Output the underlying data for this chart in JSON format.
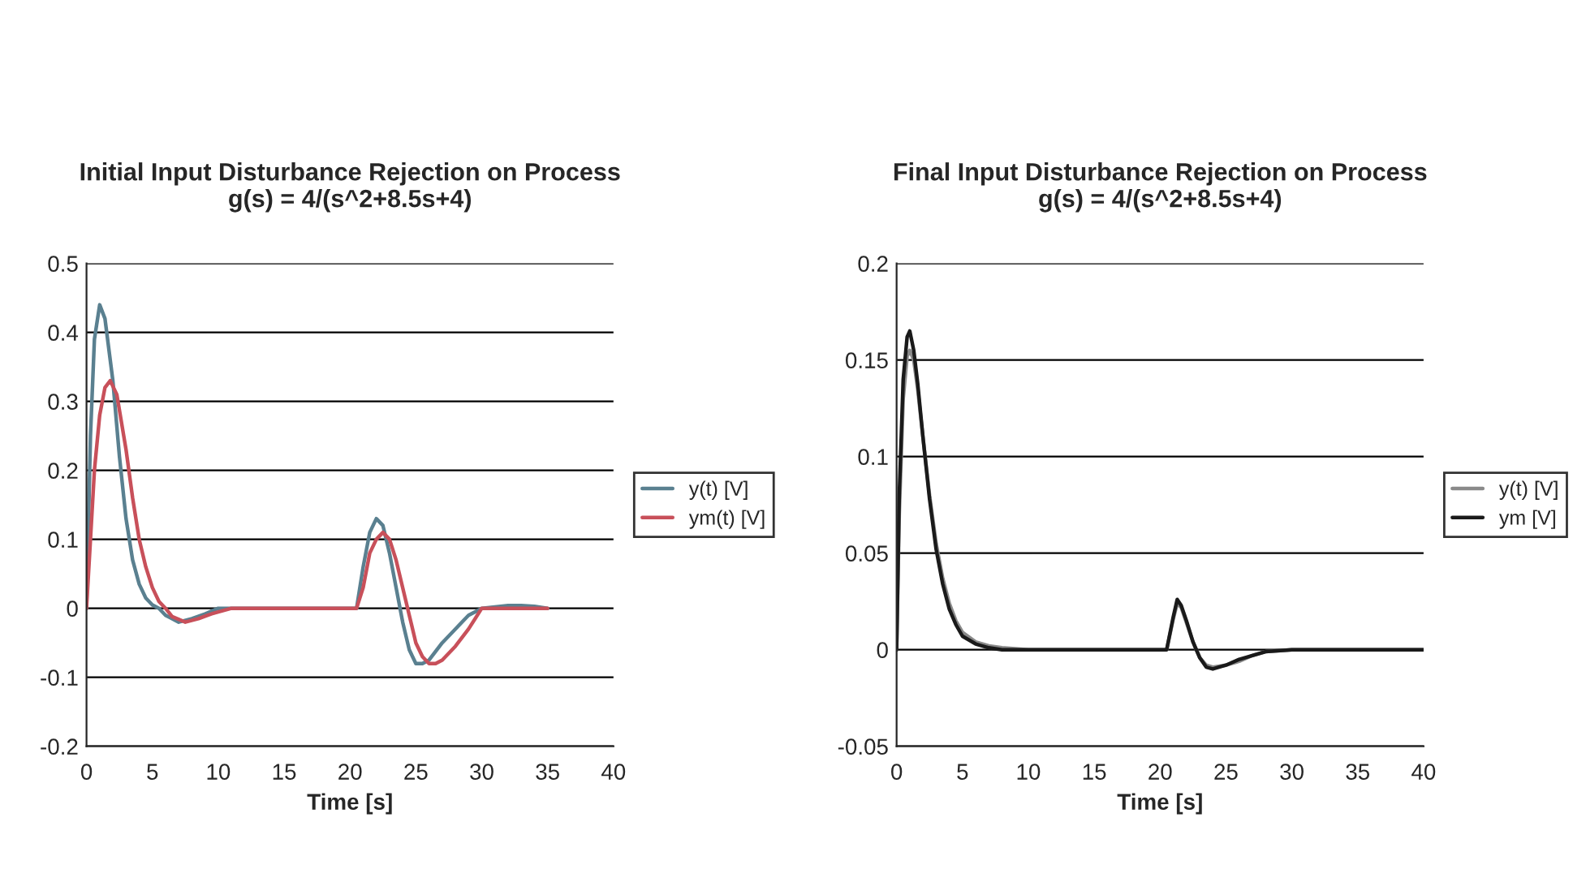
{
  "chart_data": [
    {
      "type": "line",
      "title": "Initial Input Disturbance Rejection on Process\ng(s) = 4/(s^2+8.5s+4)",
      "xlabel": "Time [s]",
      "xlim": [
        0,
        40
      ],
      "xticks": [
        0,
        5,
        10,
        15,
        20,
        25,
        30,
        35,
        40
      ],
      "ylim": [
        -0.2,
        0.5
      ],
      "yticks": [
        -0.2,
        -0.1,
        0,
        0.1,
        0.2,
        0.3,
        0.4,
        0.5
      ],
      "grid": "y",
      "legend": "right",
      "marker": "none",
      "line_style": "solid",
      "series": [
        {
          "name": "y(t) [V]",
          "color": "#5a8090",
          "x": [
            0,
            0.3,
            0.6,
            1,
            1.4,
            2,
            2.5,
            3,
            3.5,
            4,
            4.5,
            5,
            5.5,
            6,
            7,
            8,
            9,
            10,
            12,
            15,
            20,
            20.5,
            21,
            21.5,
            22,
            22.5,
            23,
            23.5,
            24,
            24.5,
            25,
            25.5,
            26,
            27,
            28,
            29,
            30,
            31,
            32,
            33,
            34,
            35
          ],
          "values": [
            0,
            0.25,
            0.39,
            0.44,
            0.42,
            0.33,
            0.22,
            0.13,
            0.07,
            0.035,
            0.015,
            0.005,
            0,
            -0.01,
            -0.02,
            -0.015,
            -0.008,
            0,
            0,
            0,
            0,
            0,
            0.06,
            0.11,
            0.13,
            0.12,
            0.08,
            0.03,
            -0.02,
            -0.06,
            -0.08,
            -0.08,
            -0.075,
            -0.05,
            -0.03,
            -0.01,
            0,
            0.002,
            0.004,
            0.004,
            0.003,
            0
          ]
        },
        {
          "name": "ym(t) [V]",
          "color": "#c8505a",
          "x": [
            0,
            0.3,
            0.6,
            1,
            1.4,
            1.8,
            2.3,
            3,
            3.5,
            4,
            4.5,
            5,
            5.5,
            6,
            6.5,
            7.5,
            8.5,
            9.5,
            11,
            15,
            20,
            20.5,
            21,
            21.5,
            22,
            22.5,
            23,
            23.5,
            24,
            24.5,
            25,
            25.5,
            26,
            26.5,
            27,
            28,
            29,
            30,
            35
          ],
          "values": [
            0,
            0.1,
            0.2,
            0.28,
            0.32,
            0.33,
            0.31,
            0.23,
            0.16,
            0.1,
            0.06,
            0.03,
            0.01,
            0,
            -0.012,
            -0.02,
            -0.015,
            -0.008,
            0,
            0,
            0,
            0,
            0.03,
            0.08,
            0.1,
            0.11,
            0.1,
            0.07,
            0.03,
            -0.01,
            -0.05,
            -0.07,
            -0.08,
            -0.08,
            -0.075,
            -0.055,
            -0.03,
            0,
            0
          ]
        }
      ]
    },
    {
      "type": "line",
      "title": "Final Input Disturbance Rejection on Process\ng(s) = 4/(s^2+8.5s+4)",
      "xlabel": "Time [s]",
      "xlim": [
        0,
        40
      ],
      "xticks": [
        0,
        5,
        10,
        15,
        20,
        25,
        30,
        35,
        40
      ],
      "ylim": [
        -0.05,
        0.2
      ],
      "yticks": [
        -0.05,
        0,
        0.05,
        0.1,
        0.15,
        0.2
      ],
      "grid": "y",
      "legend": "right",
      "marker": "none",
      "line_style": "solid",
      "series": [
        {
          "name": "y(t) [V]",
          "color": "#8a8a8a",
          "x": [
            0,
            0.2,
            0.5,
            0.8,
            1,
            1.3,
            1.6,
            2,
            2.5,
            3,
            3.5,
            4,
            4.5,
            5,
            6,
            7,
            8,
            10,
            15,
            20,
            20.5,
            21,
            21.3,
            21.6,
            22,
            22.5,
            23,
            23.5,
            24,
            25,
            26,
            27,
            28,
            30,
            40
          ],
          "values": [
            0,
            0.07,
            0.13,
            0.152,
            0.155,
            0.15,
            0.135,
            0.11,
            0.08,
            0.055,
            0.037,
            0.024,
            0.015,
            0.009,
            0.004,
            0.002,
            0.001,
            0,
            0,
            0,
            0,
            0.016,
            0.024,
            0.022,
            0.014,
            0.004,
            -0.004,
            -0.008,
            -0.009,
            -0.008,
            -0.006,
            -0.003,
            -0.001,
            0,
            0
          ]
        },
        {
          "name": "ym [V]",
          "color": "#1a1a1a",
          "x": [
            0,
            0.2,
            0.5,
            0.8,
            1,
            1.3,
            1.6,
            2,
            2.5,
            3,
            3.5,
            4,
            4.5,
            5,
            6,
            7,
            8,
            10,
            15,
            20,
            20.5,
            21,
            21.3,
            21.6,
            22,
            22.5,
            23,
            23.5,
            24,
            25,
            26,
            27,
            28,
            30,
            40
          ],
          "values": [
            0,
            0.08,
            0.14,
            0.162,
            0.165,
            0.155,
            0.138,
            0.11,
            0.078,
            0.052,
            0.034,
            0.021,
            0.013,
            0.007,
            0.003,
            0.001,
            0,
            0,
            0,
            0,
            0,
            0.017,
            0.026,
            0.023,
            0.015,
            0.004,
            -0.004,
            -0.009,
            -0.01,
            -0.008,
            -0.005,
            -0.003,
            -0.001,
            0,
            0
          ]
        }
      ]
    }
  ]
}
